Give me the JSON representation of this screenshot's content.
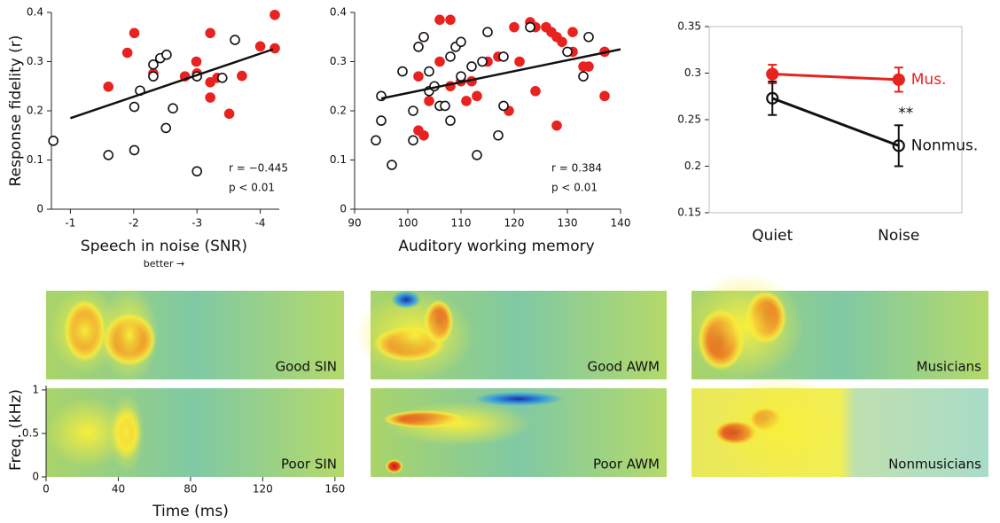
{
  "chart_data": [
    {
      "type": "scatter",
      "ylabel": "Response fidelity (r)",
      "xlabel": "Speech in noise (SNR)",
      "xnote": "better →",
      "annotations": [
        "r = −0.445",
        "p < 0.01"
      ],
      "xlim": [
        -0.7,
        -4.3
      ],
      "xticks": [
        -1,
        -2,
        -3,
        -4
      ],
      "ylim": [
        0,
        0.4
      ],
      "yticks": [
        0,
        0.1,
        0.2,
        0.3,
        0.4
      ],
      "series": [
        {
          "color": "#e8221f",
          "marker": "filled",
          "x": [
            -1.6,
            -1.9,
            -2.01,
            -2.31,
            -2.99,
            -3.0,
            -3.21,
            -3.21,
            -3.21,
            -3.32,
            -3.51,
            -3.71,
            -4.0,
            -4.23,
            -4.23,
            -2.81
          ],
          "y": [
            0.249,
            0.318,
            0.358,
            0.276,
            0.3,
            0.276,
            0.358,
            0.258,
            0.227,
            0.267,
            0.194,
            0.271,
            0.331,
            0.395,
            0.327,
            0.27
          ]
        },
        {
          "color": "#111111",
          "marker": "open",
          "x": [
            -0.73,
            -1.6,
            -2.01,
            -2.01,
            -2.1,
            -2.31,
            -2.42,
            -2.52,
            -2.31,
            -2.51,
            -2.62,
            -3.0,
            -3.0,
            -3.4,
            -3.6
          ],
          "y": [
            0.139,
            0.11,
            0.208,
            0.12,
            0.241,
            0.294,
            0.307,
            0.314,
            0.27,
            0.165,
            0.205,
            0.27,
            0.077,
            0.267,
            0.344
          ]
        }
      ],
      "fit": {
        "x": [
          -1,
          -4.2
        ],
        "y": [
          0.185,
          0.325
        ]
      }
    },
    {
      "type": "scatter",
      "xlabel": "Auditory working memory",
      "annotations": [
        "r = 0.384",
        "p < 0.01"
      ],
      "xlim": [
        90,
        140
      ],
      "xticks": [
        90,
        100,
        110,
        120,
        130,
        140
      ],
      "ylim": [
        0,
        0.4
      ],
      "yticks": [
        0,
        0.1,
        0.2,
        0.3,
        0.4
      ],
      "series": [
        {
          "color": "#e8221f",
          "marker": "filled",
          "x": [
            106,
            108,
            103,
            102,
            104,
            102,
            103,
            106,
            108,
            111,
            112,
            113,
            115,
            117,
            119,
            120,
            121,
            123,
            124,
            126,
            127,
            128,
            128,
            129,
            131,
            131,
            133,
            134,
            137,
            137,
            124,
            110
          ],
          "y": [
            0.385,
            0.385,
            0.35,
            0.27,
            0.22,
            0.16,
            0.15,
            0.3,
            0.25,
            0.22,
            0.26,
            0.23,
            0.3,
            0.31,
            0.2,
            0.37,
            0.3,
            0.38,
            0.37,
            0.37,
            0.36,
            0.35,
            0.17,
            0.34,
            0.36,
            0.32,
            0.29,
            0.29,
            0.32,
            0.23,
            0.24,
            0.26
          ]
        },
        {
          "color": "#111111",
          "marker": "open",
          "x": [
            94,
            95,
            95,
            97,
            99,
            101,
            101,
            102,
            103,
            104,
            104,
            105,
            106,
            107,
            108,
            108,
            109,
            110,
            110,
            112,
            113,
            114,
            115,
            117,
            118,
            118,
            123,
            130,
            133,
            134
          ],
          "y": [
            0.14,
            0.18,
            0.23,
            0.09,
            0.28,
            0.14,
            0.2,
            0.33,
            0.35,
            0.24,
            0.28,
            0.25,
            0.21,
            0.21,
            0.18,
            0.31,
            0.33,
            0.34,
            0.27,
            0.29,
            0.11,
            0.3,
            0.36,
            0.15,
            0.21,
            0.31,
            0.37,
            0.32,
            0.27,
            0.35
          ]
        }
      ],
      "fit": {
        "x": [
          95,
          140
        ],
        "y": [
          0.225,
          0.325
        ]
      }
    },
    {
      "type": "line",
      "categories": [
        "Quiet",
        "Noise"
      ],
      "ylim": [
        0.15,
        0.35
      ],
      "yticks": [
        0.15,
        0.2,
        0.25,
        0.3,
        0.35
      ],
      "annotation": "**",
      "series": [
        {
          "name": "Mus.",
          "color": "#e8221f",
          "values": [
            0.299,
            0.293
          ],
          "errors": [
            0.01,
            0.013
          ]
        },
        {
          "name": "Nonmus.",
          "color": "#111111",
          "values": [
            0.273,
            0.222
          ],
          "errors": [
            0.018,
            0.022
          ]
        }
      ]
    },
    {
      "type": "heatmap",
      "panels": [
        "Good SIN",
        "Poor SIN",
        "Good AWM",
        "Poor AWM",
        "Musicians",
        "Nonmusicians"
      ],
      "xlabel": "Time (ms)",
      "ylabel": "Freq. (kHz)",
      "xlim": [
        0,
        165
      ],
      "xticks": [
        0,
        40,
        80,
        120,
        160
      ],
      "ylim": [
        0,
        1.05
      ],
      "yticks": [
        0,
        0.5,
        1
      ]
    }
  ]
}
